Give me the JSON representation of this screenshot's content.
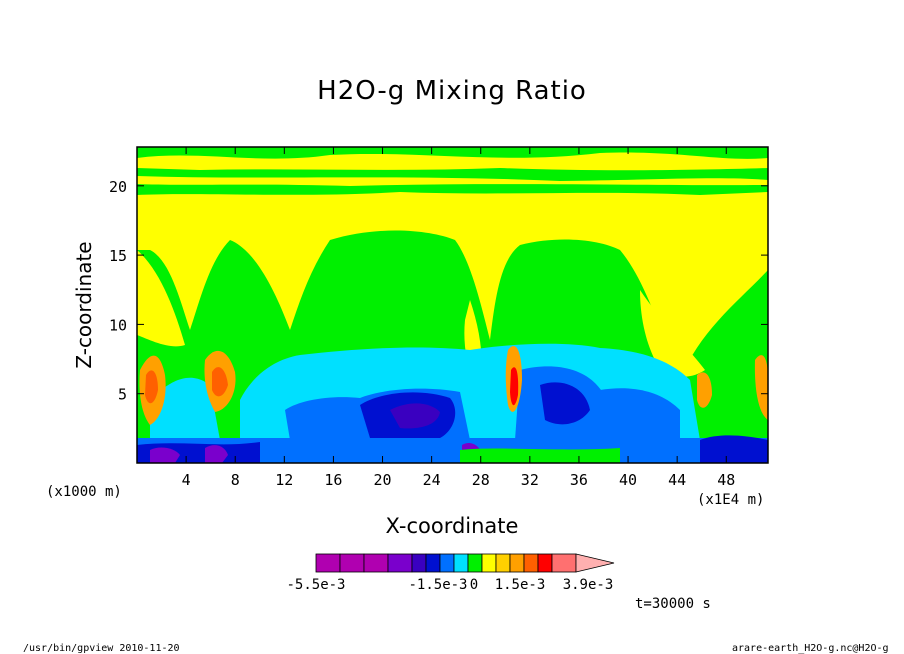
{
  "chart_data": {
    "type": "heatmap",
    "title": "H2O-g Mixing Ratio",
    "xlabel": "X-coordinate",
    "ylabel": "Z-coordinate",
    "x_unit_left": "(x1000 m)",
    "x_unit_right": "(x1E4 m)",
    "x_ticks": [
      4,
      8,
      12,
      16,
      20,
      24,
      28,
      32,
      36,
      40,
      44,
      48
    ],
    "y_ticks": [
      5,
      10,
      15,
      20
    ],
    "xlim": [
      0,
      51.4
    ],
    "ylim": [
      0,
      22.8
    ],
    "colorbar": {
      "colors": [
        "#b000b0",
        "#b000b0",
        "#b000b0",
        "#7a00cc",
        "#3a00c0",
        "#0010d0",
        "#0070ff",
        "#00e0ff",
        "#00f000",
        "#ffff00",
        "#ffd000",
        "#ffa000",
        "#ff6000",
        "#ff0000",
        "#ff7070",
        "#ffb0b0"
      ],
      "labels": [
        "-5.5e-3",
        "-1.5e-3",
        "0",
        "1.5e-3",
        "3.9e-3"
      ]
    },
    "field_description_levels": [
      "deep-negative",
      "negative",
      "near-zero",
      "positive",
      "high-positive"
    ]
  },
  "time_label": "t=30000 s",
  "footer_left": "/usr/bin/gpview  2010-11-20",
  "footer_right": "arare-earth_H2O-g.nc@H2O-g"
}
